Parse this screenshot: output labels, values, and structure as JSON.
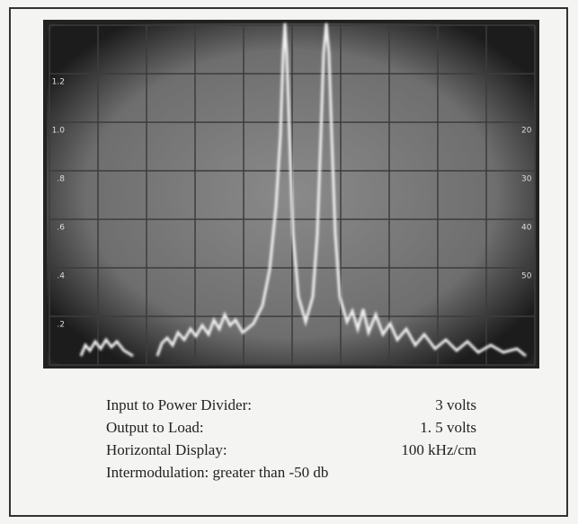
{
  "display": {
    "left_scale": [
      "1.2",
      "1.0",
      ".8",
      ".6",
      ".4",
      ".2"
    ],
    "right_scale": [
      "20",
      "30",
      "40",
      "50"
    ]
  },
  "caption": {
    "rows": [
      [
        "Input to Power Divider:",
        "3 volts"
      ],
      [
        "Output to Load:",
        "1. 5 volts"
      ],
      [
        "Horizontal Display:",
        "100 kHz/cm"
      ]
    ],
    "last_line": "Intermodulation: greater than -50 db"
  }
}
